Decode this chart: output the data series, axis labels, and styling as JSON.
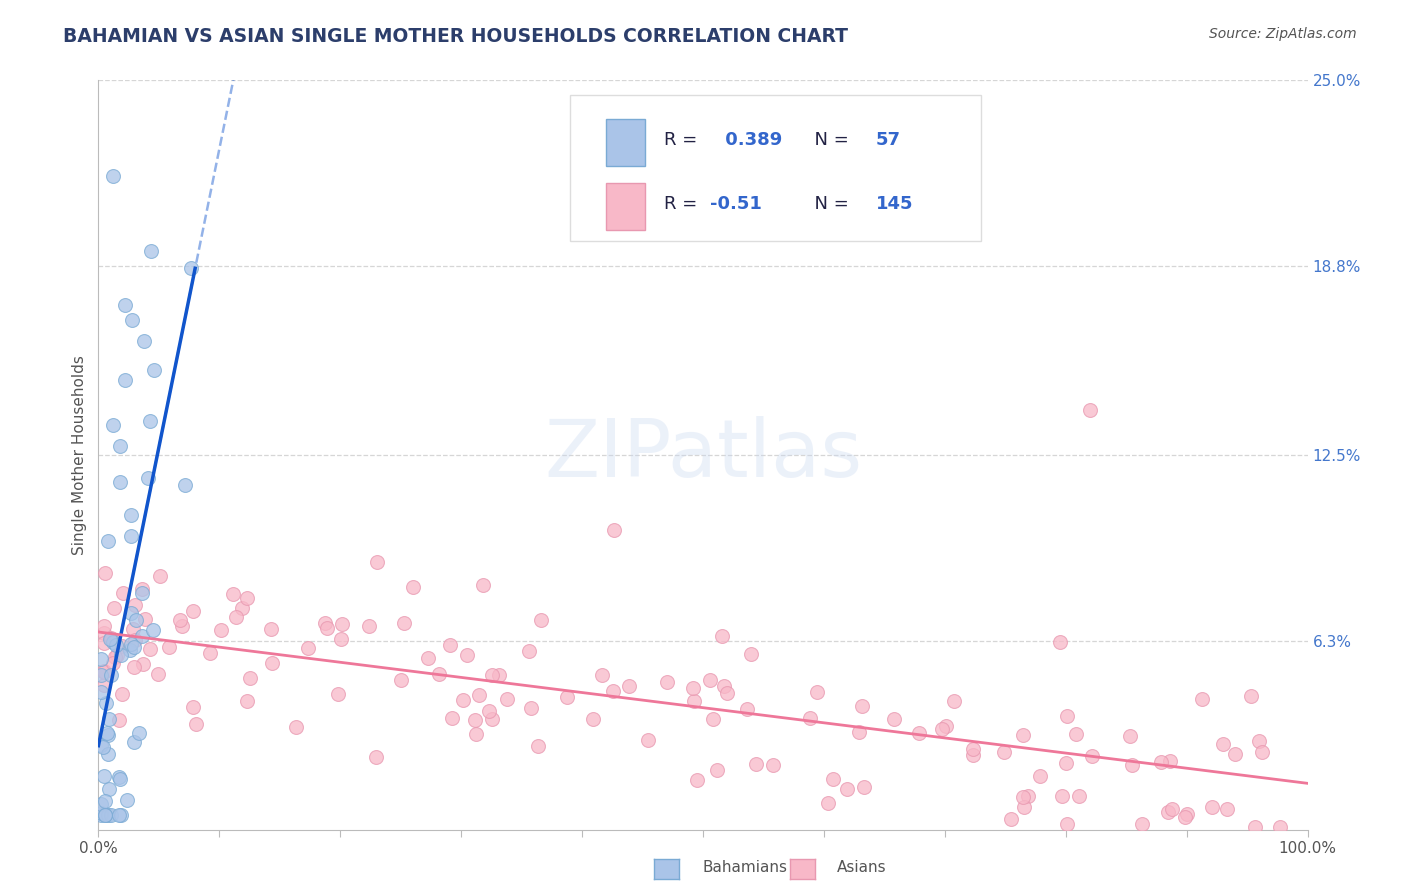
{
  "title": "BAHAMIAN VS ASIAN SINGLE MOTHER HOUSEHOLDS CORRELATION CHART",
  "source": "Source: ZipAtlas.com",
  "ylabel": "Single Mother Households",
  "xlim": [
    0,
    1.0
  ],
  "ylim": [
    0,
    0.25
  ],
  "grid_color": "#cccccc",
  "background_color": "#ffffff",
  "watermark": "ZIPatlas",
  "blue_R": 0.389,
  "blue_N": 57,
  "pink_R": -0.51,
  "pink_N": 145,
  "blue_scatter_color": "#aac4e8",
  "blue_edge_color": "#7aaad4",
  "pink_scatter_color": "#f8b8c8",
  "pink_edge_color": "#e898b0",
  "blue_line_color": "#1155cc",
  "pink_line_color": "#ee7799",
  "title_color": "#2c3e6b",
  "source_color": "#555555",
  "tick_color_right": "#4477cc",
  "ylabel_color": "#555555",
  "legend_text_color": "#222244",
  "legend_value_color": "#3366cc",
  "legend_border_color": "#dddddd",
  "bottom_legend_text_color": "#555555"
}
